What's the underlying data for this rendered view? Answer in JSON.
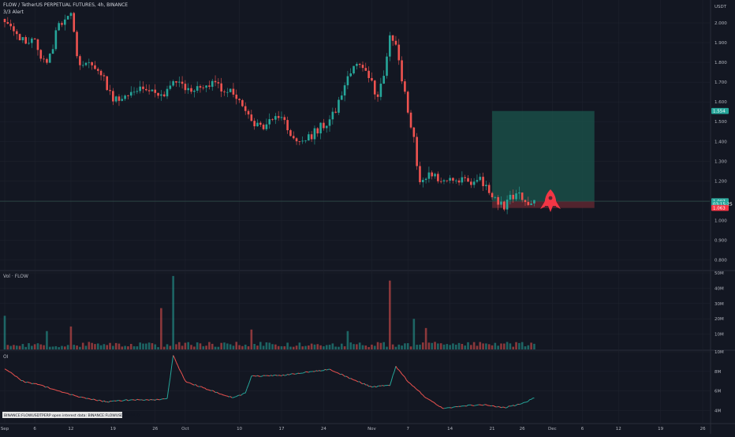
{
  "header": {
    "title": "FLOW / TetherUS PERPETUAL FUTURES, 4h, BINANCE",
    "subtitle": "3/3 Alert"
  },
  "colors": {
    "background": "#131722",
    "grid": "#1e222d",
    "up": "#26a69a",
    "down": "#ef5350",
    "profit_zone": "#1a4d46",
    "loss_zone": "#5a2630",
    "rocket": "#f23645",
    "price_line": "#2f4f4a"
  },
  "chart_data": [
    {
      "type": "candlestick",
      "pane": "price",
      "axis_unit": "USDT",
      "ylim": [
        0.75,
        2.1
      ],
      "y_ticks": [
        "2.000",
        "1.900",
        "1.800",
        "1.700",
        "1.600",
        "1.500",
        "1.400",
        "1.300",
        "1.200",
        "1.100",
        "1.000",
        "0.900",
        "0.800"
      ],
      "x_ticks": [
        "Sep",
        "6",
        "12",
        "19",
        "26",
        "Oct",
        "10",
        "17",
        "24",
        "Nov",
        "7",
        "14",
        "21",
        "26",
        "Dec",
        "6",
        "12",
        "19",
        "26"
      ],
      "trend_points": [
        {
          "date": "2021-09-01",
          "close": 2.02
        },
        {
          "date": "2021-09-03",
          "close": 1.92
        },
        {
          "date": "2021-09-06",
          "close": 1.9
        },
        {
          "date": "2021-09-08",
          "close": 1.78
        },
        {
          "date": "2021-09-10",
          "close": 2.0
        },
        {
          "date": "2021-09-12",
          "close": 2.04
        },
        {
          "date": "2021-09-13",
          "close": 1.82
        },
        {
          "date": "2021-09-15",
          "close": 1.78
        },
        {
          "date": "2021-09-17",
          "close": 1.75
        },
        {
          "date": "2021-09-19",
          "close": 1.62
        },
        {
          "date": "2021-09-21",
          "close": 1.64
        },
        {
          "date": "2021-09-24",
          "close": 1.69
        },
        {
          "date": "2021-09-27",
          "close": 1.63
        },
        {
          "date": "2021-09-29",
          "close": 1.7
        },
        {
          "date": "2021-10-02",
          "close": 1.66
        },
        {
          "date": "2021-10-05",
          "close": 1.69
        },
        {
          "date": "2021-10-08",
          "close": 1.67
        },
        {
          "date": "2021-10-10",
          "close": 1.6
        },
        {
          "date": "2021-10-12",
          "close": 1.5
        },
        {
          "date": "2021-10-14",
          "close": 1.48
        },
        {
          "date": "2021-10-17",
          "close": 1.52
        },
        {
          "date": "2021-10-19",
          "close": 1.43
        },
        {
          "date": "2021-10-21",
          "close": 1.4
        },
        {
          "date": "2021-10-23",
          "close": 1.46
        },
        {
          "date": "2021-10-25",
          "close": 1.5
        },
        {
          "date": "2021-10-27",
          "close": 1.63
        },
        {
          "date": "2021-10-29",
          "close": 1.8
        },
        {
          "date": "2021-10-31",
          "close": 1.75
        },
        {
          "date": "2021-11-02",
          "close": 1.62
        },
        {
          "date": "2021-11-03",
          "close": 1.72
        },
        {
          "date": "2021-11-04",
          "close": 1.95
        },
        {
          "date": "2021-11-05",
          "close": 1.88
        },
        {
          "date": "2021-11-06",
          "close": 1.72
        },
        {
          "date": "2021-11-08",
          "close": 1.4
        },
        {
          "date": "2021-11-09",
          "close": 1.18
        },
        {
          "date": "2021-11-11",
          "close": 1.24
        },
        {
          "date": "2021-11-13",
          "close": 1.2
        },
        {
          "date": "2021-11-15",
          "close": 1.22
        },
        {
          "date": "2021-11-17",
          "close": 1.2
        },
        {
          "date": "2021-11-19",
          "close": 1.21
        },
        {
          "date": "2021-11-21",
          "close": 1.12
        },
        {
          "date": "2021-11-23",
          "close": 1.08
        },
        {
          "date": "2021-11-25",
          "close": 1.13
        },
        {
          "date": "2021-11-27",
          "close": 1.1
        },
        {
          "date": "2021-11-28",
          "close": 1.097
        }
      ],
      "position": {
        "target": 1.554,
        "entry": 1.097,
        "stop": 1.063,
        "start_date": "2021-11-21",
        "end_date": "2021-12-08"
      },
      "price_tags": [
        {
          "label": "1.554",
          "value": 1.554,
          "color": "#26a69a"
        },
        {
          "label": "1.098",
          "value": 1.098,
          "color": "#434651"
        },
        {
          "label": "1.097",
          "value": 1.097,
          "color": "#26a69a"
        },
        {
          "label": "03:15:25",
          "value": 1.083,
          "color": "#26a69a"
        },
        {
          "label": "1.063",
          "value": 1.063,
          "color": "#f23645"
        }
      ]
    },
    {
      "type": "bar",
      "pane": "volume",
      "series_name": "Vol · FLOW",
      "ylim": [
        0,
        50
      ],
      "y_ticks": [
        "50M",
        "40M",
        "30M",
        "20M",
        "10M"
      ],
      "spikes": [
        {
          "date": "2021-09-01",
          "value": 22
        },
        {
          "date": "2021-09-08",
          "value": 12
        },
        {
          "date": "2021-09-12",
          "value": 15
        },
        {
          "date": "2021-09-27",
          "value": 27
        },
        {
          "date": "2021-09-29",
          "value": 48
        },
        {
          "date": "2021-10-12",
          "value": 13
        },
        {
          "date": "2021-10-28",
          "value": 12
        },
        {
          "date": "2021-11-04",
          "value": 45
        },
        {
          "date": "2021-11-08",
          "value": 20
        },
        {
          "date": "2021-11-10",
          "value": 14
        }
      ]
    },
    {
      "type": "line",
      "pane": "open_interest",
      "series_name": "OI",
      "ylim": [
        3,
        10
      ],
      "y_ticks": [
        "10M",
        "8M",
        "6M",
        "4M"
      ],
      "points": [
        {
          "date": "2021-09-01",
          "value": 8.3
        },
        {
          "date": "2021-09-04",
          "value": 7.0
        },
        {
          "date": "2021-09-07",
          "value": 6.6
        },
        {
          "date": "2021-09-10",
          "value": 6.0
        },
        {
          "date": "2021-09-14",
          "value": 5.3
        },
        {
          "date": "2021-09-18",
          "value": 4.9
        },
        {
          "date": "2021-09-22",
          "value": 5.1
        },
        {
          "date": "2021-09-26",
          "value": 5.1
        },
        {
          "date": "2021-09-28",
          "value": 5.2
        },
        {
          "date": "2021-09-29",
          "value": 9.6
        },
        {
          "date": "2021-10-01",
          "value": 7.0
        },
        {
          "date": "2021-10-05",
          "value": 6.1
        },
        {
          "date": "2021-10-09",
          "value": 5.3
        },
        {
          "date": "2021-10-11",
          "value": 5.8
        },
        {
          "date": "2021-10-12",
          "value": 7.5
        },
        {
          "date": "2021-10-17",
          "value": 7.6
        },
        {
          "date": "2021-10-22",
          "value": 8.0
        },
        {
          "date": "2021-10-25",
          "value": 8.2
        },
        {
          "date": "2021-10-28",
          "value": 7.4
        },
        {
          "date": "2021-11-01",
          "value": 6.4
        },
        {
          "date": "2021-11-04",
          "value": 6.6
        },
        {
          "date": "2021-11-05",
          "value": 8.5
        },
        {
          "date": "2021-11-07",
          "value": 7.0
        },
        {
          "date": "2021-11-10",
          "value": 5.3
        },
        {
          "date": "2021-11-13",
          "value": 4.2
        },
        {
          "date": "2021-11-16",
          "value": 4.5
        },
        {
          "date": "2021-11-20",
          "value": 4.6
        },
        {
          "date": "2021-11-23",
          "value": 4.3
        },
        {
          "date": "2021-11-26",
          "value": 4.7
        },
        {
          "date": "2021-11-28",
          "value": 5.3
        }
      ]
    }
  ],
  "bottom_legend": "BINANCE:FLOWUSDTPERP open interest data: BINANCE:FLOWUSDTPERP_OI"
}
